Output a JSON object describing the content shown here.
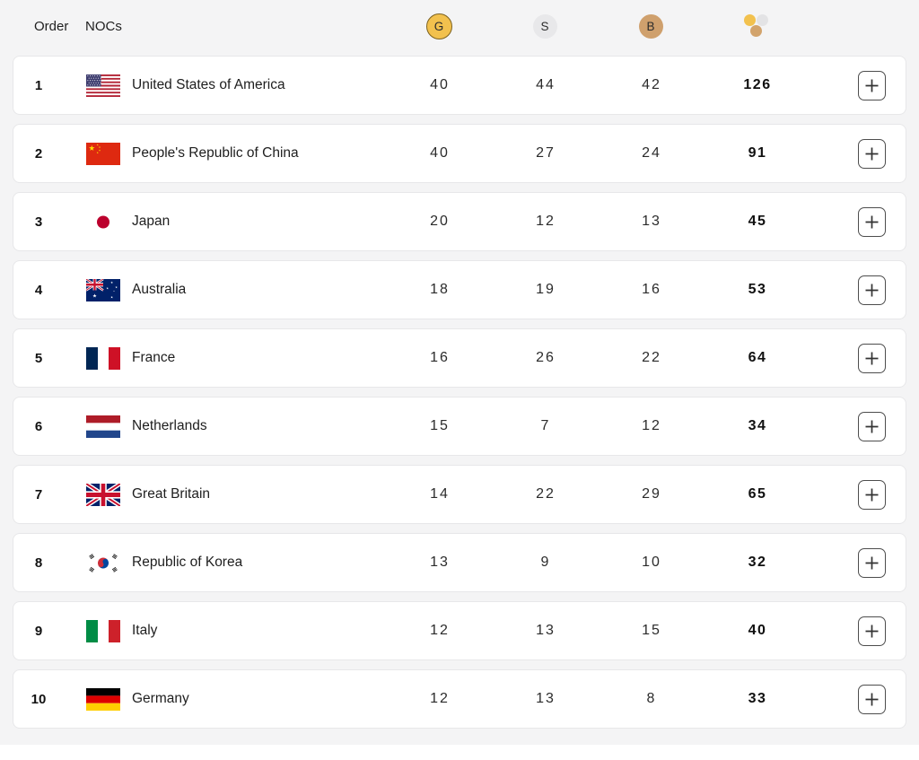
{
  "header": {
    "order_label": "Order",
    "nocs_label": "NOCs",
    "gold_label": "G",
    "silver_label": "S",
    "bronze_label": "B"
  },
  "colors": {
    "gold": "#f2c14e",
    "gold_border": "#7d6220",
    "silver": "#e8e8ea",
    "bronze": "#cfa06d",
    "page_bg": "#f4f4f5",
    "card_bg": "#ffffff"
  },
  "rows": [
    {
      "order": "1",
      "flag": "us",
      "noc": "United States of America",
      "gold": "40",
      "silver": "44",
      "bronze": "42",
      "total": "126"
    },
    {
      "order": "2",
      "flag": "cn",
      "noc": "People's Republic of China",
      "gold": "40",
      "silver": "27",
      "bronze": "24",
      "total": "91"
    },
    {
      "order": "3",
      "flag": "jp",
      "noc": "Japan",
      "gold": "20",
      "silver": "12",
      "bronze": "13",
      "total": "45"
    },
    {
      "order": "4",
      "flag": "au",
      "noc": "Australia",
      "gold": "18",
      "silver": "19",
      "bronze": "16",
      "total": "53"
    },
    {
      "order": "5",
      "flag": "fr",
      "noc": "France",
      "gold": "16",
      "silver": "26",
      "bronze": "22",
      "total": "64"
    },
    {
      "order": "6",
      "flag": "nl",
      "noc": "Netherlands",
      "gold": "15",
      "silver": "7",
      "bronze": "12",
      "total": "34"
    },
    {
      "order": "7",
      "flag": "gb",
      "noc": "Great Britain",
      "gold": "14",
      "silver": "22",
      "bronze": "29",
      "total": "65"
    },
    {
      "order": "8",
      "flag": "kr",
      "noc": "Republic of Korea",
      "gold": "13",
      "silver": "9",
      "bronze": "10",
      "total": "32"
    },
    {
      "order": "9",
      "flag": "it",
      "noc": "Italy",
      "gold": "12",
      "silver": "13",
      "bronze": "15",
      "total": "40"
    },
    {
      "order": "10",
      "flag": "de",
      "noc": "Germany",
      "gold": "12",
      "silver": "13",
      "bronze": "8",
      "total": "33"
    }
  ]
}
